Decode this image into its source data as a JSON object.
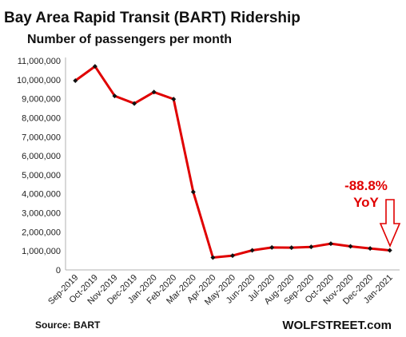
{
  "chart_data": {
    "type": "line",
    "title": "Bay Area Rapid Transit (BART) Ridership",
    "subtitle": "Number of passengers per month",
    "categories": [
      "Sep-2019",
      "Oct-2019",
      "Nov-2019",
      "Dec-2019",
      "Jan-2020",
      "Feb-2020",
      "Mar-2020",
      "Apr-2020",
      "May-2020",
      "Jun-2020",
      "Jul-2020",
      "Aug-2020",
      "Sep-2020",
      "Oct-2020",
      "Nov-2020",
      "Dec-2020",
      "Jan-2021"
    ],
    "series": [
      {
        "values": [
          9950000,
          10700000,
          9150000,
          8750000,
          9350000,
          8980000,
          4100000,
          650000,
          750000,
          1030000,
          1180000,
          1170000,
          1210000,
          1380000,
          1240000,
          1130000,
          1030000
        ]
      }
    ],
    "ylim": [
      0,
      11000000
    ],
    "yticks": [
      "0",
      "1,000,000",
      "2,000,000",
      "3,000,000",
      "4,000,000",
      "5,000,000",
      "6,000,000",
      "7,000,000",
      "8,000,000",
      "9,000,000",
      "10,000,000",
      "11,000,000"
    ],
    "grid": false,
    "line_color": "#e00000",
    "marker_color": "#111111",
    "annotation": {
      "line1": "-88.8%",
      "line2": "YoY",
      "color": "#e00000"
    },
    "source": "Source: BART",
    "brand": "WOLFSTREET.com"
  }
}
